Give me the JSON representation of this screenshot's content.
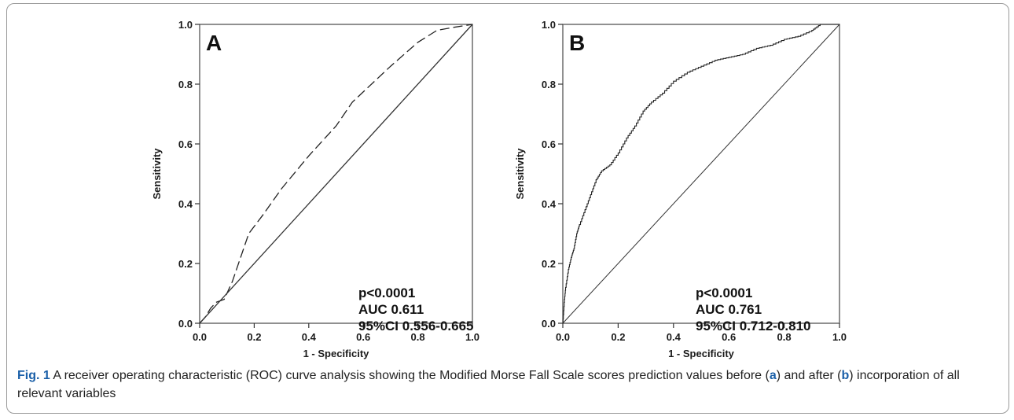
{
  "chart_data": [
    {
      "type": "line",
      "panel_label": "A",
      "xlabel": "1 - Specificity",
      "ylabel": "Sensitivity",
      "xlim": [
        0,
        1
      ],
      "ylim": [
        0,
        1
      ],
      "xticks": [
        "0.0",
        "0.2",
        "0.4",
        "0.6",
        "0.8",
        "1.0"
      ],
      "yticks": [
        "0.0",
        "0.2",
        "0.4",
        "0.6",
        "0.8",
        "1.0"
      ],
      "grid": false,
      "stats": [
        "p<0.0001",
        "AUC 0.611",
        "95%CI 0.556-0.665"
      ],
      "series": [
        {
          "style": "dashed",
          "points": [
            [
              0,
              0
            ],
            [
              0.02,
              0.02
            ],
            [
              0.04,
              0.05
            ],
            [
              0.06,
              0.07
            ],
            [
              0.09,
              0.08
            ],
            [
              0.12,
              0.14
            ],
            [
              0.15,
              0.22
            ],
            [
              0.18,
              0.3
            ],
            [
              0.23,
              0.36
            ],
            [
              0.3,
              0.45
            ],
            [
              0.4,
              0.56
            ],
            [
              0.5,
              0.66
            ],
            [
              0.56,
              0.74
            ],
            [
              0.7,
              0.86
            ],
            [
              0.8,
              0.94
            ],
            [
              0.87,
              0.98
            ],
            [
              0.93,
              0.99
            ],
            [
              1.0,
              1.0
            ]
          ]
        },
        {
          "style": "reference",
          "points": [
            [
              0,
              0
            ],
            [
              1,
              1
            ]
          ]
        }
      ]
    },
    {
      "type": "line",
      "panel_label": "B",
      "xlabel": "1 - Specificity",
      "ylabel": "Sensitivity",
      "xlim": [
        0,
        1
      ],
      "ylim": [
        0,
        1
      ],
      "xticks": [
        "0.0",
        "0.2",
        "0.4",
        "0.6",
        "0.8",
        "1.0"
      ],
      "yticks": [
        "0.0",
        "0.2",
        "0.4",
        "0.6",
        "0.8",
        "1.0"
      ],
      "grid": false,
      "stats": [
        "p<0.0001",
        "AUC 0.761",
        "95%CI 0.712-0.810"
      ],
      "series": [
        {
          "style": "step",
          "points": [
            [
              0,
              0
            ],
            [
              0.005,
              0.07
            ],
            [
              0.01,
              0.12
            ],
            [
              0.02,
              0.18
            ],
            [
              0.03,
              0.22
            ],
            [
              0.04,
              0.25
            ],
            [
              0.05,
              0.3
            ],
            [
              0.06,
              0.33
            ],
            [
              0.08,
              0.38
            ],
            [
              0.1,
              0.43
            ],
            [
              0.12,
              0.48
            ],
            [
              0.14,
              0.51
            ],
            [
              0.17,
              0.53
            ],
            [
              0.2,
              0.57
            ],
            [
              0.23,
              0.62
            ],
            [
              0.26,
              0.66
            ],
            [
              0.29,
              0.71
            ],
            [
              0.32,
              0.74
            ],
            [
              0.36,
              0.77
            ],
            [
              0.4,
              0.81
            ],
            [
              0.45,
              0.84
            ],
            [
              0.5,
              0.86
            ],
            [
              0.55,
              0.88
            ],
            [
              0.6,
              0.89
            ],
            [
              0.65,
              0.9
            ],
            [
              0.7,
              0.92
            ],
            [
              0.75,
              0.93
            ],
            [
              0.8,
              0.95
            ],
            [
              0.85,
              0.96
            ],
            [
              0.9,
              0.98
            ],
            [
              0.93,
              1.0
            ],
            [
              1.0,
              1.0
            ]
          ]
        },
        {
          "style": "reference",
          "points": [
            [
              0,
              0
            ],
            [
              1,
              1
            ]
          ]
        }
      ]
    }
  ],
  "caption": {
    "fig_label": "Fig. 1",
    "text_1": " A receiver operating characteristic (ROC) curve analysis showing the Modified Morse Fall Scale scores prediction values before (",
    "bold_1": "a",
    "text_2": ") and after (",
    "bold_2": "b",
    "text_3": ") incorporation of all relevant variables"
  }
}
